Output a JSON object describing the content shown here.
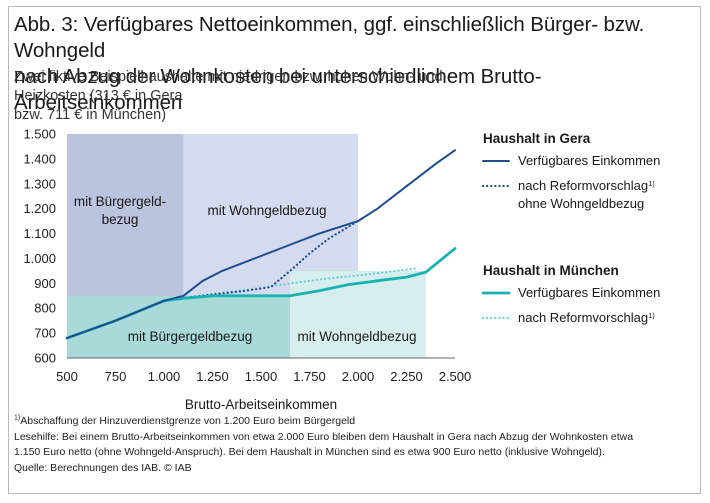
{
  "title_line1": "Abb. 3: Verfügbares Nettoeinkommen, ggf. einschließlich Bürger- bzw. Wohngeld",
  "title_line2": "nach Abzug der Wohnkosten bei unterschiedlichem Brutto-Arbeitseinkommen",
  "subtitle_line1": "Zwei fiktive Beispielhaushalte mit niedrigen bzw. hohen Wohn- und Heizkosten (313 € in Gera",
  "subtitle_line2": "bzw. 711 € in München)",
  "colors": {
    "gera": "#1f4e8c",
    "muenchen": "#19b2b2",
    "muenchen_dotted": "#6fcbd6",
    "region_gera_buergergeld": "#bcc3de",
    "region_gera_wohngeld": "#d4dbef",
    "region_muenchen_buergergeld": "#a9d9d9",
    "region_muenchen_wohngeld": "#d6eeee"
  },
  "chart_data": {
    "type": "line",
    "xlabel": "Brutto-Arbeitseinkommen",
    "ylabel": "",
    "xlim": [
      500,
      2500
    ],
    "ylim": [
      600,
      1500
    ],
    "x_ticks": [
      500,
      750,
      1000,
      1250,
      1500,
      1750,
      2000,
      2250,
      2500
    ],
    "x_tick_labels": [
      "500",
      "750",
      "1.000",
      "1.250",
      "1.500",
      "1.750",
      "2.000",
      "2.250",
      "2.500"
    ],
    "y_ticks": [
      600,
      700,
      800,
      900,
      1000,
      1100,
      1200,
      1300,
      1400,
      1500
    ],
    "y_tick_labels": [
      "600",
      "700",
      "800",
      "900",
      "1.000",
      "1.100",
      "1.200",
      "1.300",
      "1.400",
      "1.500"
    ],
    "grid": false,
    "legend_position": "right",
    "regions": [
      {
        "label_lines": [
          "mit Bürgergeld-",
          "bezug"
        ],
        "household": "Gera",
        "x_range": [
          500,
          1100
        ],
        "y_range": [
          600,
          1500
        ],
        "color_key": "region_gera_buergergeld"
      },
      {
        "label_lines": [
          "mit Wohngeldbezug"
        ],
        "household": "Gera",
        "x_range": [
          1100,
          2000
        ],
        "y_range": [
          600,
          1500
        ],
        "color_key": "region_gera_wohngeld"
      },
      {
        "label_lines": [
          "mit Bürgergeldbezug"
        ],
        "household": "München",
        "x_range": [
          500,
          1650
        ],
        "y_range": [
          600,
          850
        ],
        "color_key": "region_muenchen_buergergeld"
      },
      {
        "label_lines": [
          "mit Wohngeldbezug"
        ],
        "household": "München",
        "x_range": [
          1650,
          2350
        ],
        "y_range": [
          600,
          950
        ],
        "color_key": "region_muenchen_wohngeld"
      }
    ],
    "legend_groups": [
      {
        "title": "Haushalt in Gera",
        "entries": [
          {
            "label_lines": [
              "Verfügbares Einkommen"
            ],
            "footnote": "",
            "series": "gera_available"
          },
          {
            "label_lines": [
              "nach Reformvorschlag",
              "ohne Wohngeldbezug"
            ],
            "footnote": "1)",
            "series": "gera_reform"
          }
        ]
      },
      {
        "title": "Haushalt in München",
        "entries": [
          {
            "label_lines": [
              "Verfügbares Einkommen"
            ],
            "footnote": "",
            "series": "muenchen_available"
          },
          {
            "label_lines": [
              "nach Reformvorschlag"
            ],
            "footnote": "1)",
            "series": "muenchen_reform"
          }
        ]
      }
    ],
    "series": [
      {
        "id": "gera_available",
        "household": "Gera",
        "style": "solid",
        "color_key": "gera",
        "x": [
          500,
          750,
          1000,
          1100,
          1200,
          1300,
          1400,
          1500,
          1600,
          1700,
          1800,
          1900,
          2000,
          2100,
          2200,
          2300,
          2400,
          2500
        ],
        "y": [
          680,
          750,
          830,
          850,
          910,
          950,
          980,
          1010,
          1040,
          1070,
          1100,
          1125,
          1150,
          1200,
          1260,
          1320,
          1380,
          1435
        ]
      },
      {
        "id": "gera_reform",
        "household": "Gera",
        "style": "dotted",
        "color_key": "gera",
        "x": [
          500,
          750,
          1000,
          1100,
          1250,
          1400,
          1550,
          1650,
          1750,
          1850,
          2000
        ],
        "y": [
          680,
          750,
          830,
          840,
          855,
          868,
          885,
          950,
          1020,
          1080,
          1150
        ]
      },
      {
        "id": "muenchen_available",
        "household": "München",
        "style": "solid",
        "color_key": "muenchen",
        "x": [
          500,
          750,
          1000,
          1100,
          1250,
          1400,
          1650,
          1800,
          1950,
          2100,
          2250,
          2350,
          2500
        ],
        "y": [
          680,
          750,
          830,
          840,
          850,
          850,
          850,
          870,
          895,
          910,
          925,
          945,
          1040
        ]
      },
      {
        "id": "muenchen_reform",
        "household": "München",
        "style": "dotted",
        "color_key": "muenchen_dotted",
        "x": [
          500,
          750,
          1000,
          1100,
          1250,
          1400,
          1550,
          1700,
          1850,
          2000,
          2150,
          2300
        ],
        "y": [
          680,
          750,
          830,
          842,
          858,
          872,
          888,
          905,
          920,
          932,
          945,
          960
        ]
      }
    ]
  },
  "footnote1": "Abschaffung der Hinzuverdienstgrenze von 1.200 Euro beim Bürgergeld",
  "footnote1_marker": "1)",
  "lesehilfe_line1": "Lesehilfe: Bei einem Brutto-Arbeitseinkommen von etwa 2.000 Euro bleiben dem Haushalt in Gera nach Abzug der Wohnkosten etwa",
  "lesehilfe_line2": "1.150 Euro netto (ohne Wohngeld-Anspruch). Bei dem Haushalt in München sind es etwa 900 Euro netto (inklusive Wohngeld).",
  "source": "Quelle: Berechnungen des IAB. © IAB"
}
